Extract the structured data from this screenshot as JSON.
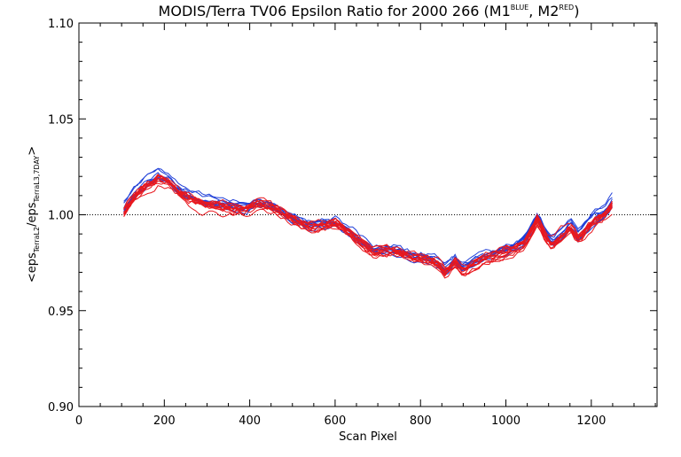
{
  "chart_data": {
    "type": "line",
    "title": {
      "main": "MODIS/Terra TV06 Epsilon Ratio for 2000 266 (M1",
      "m1_sup": "BLUE",
      "mid": ", M2",
      "m2_sup": "RED",
      "end": ")"
    },
    "xlabel": "Scan Pixel",
    "ylabel": {
      "a": "<eps",
      "a_sub": "TerraL2",
      "b": "/eps",
      "b_sub": "TerraL3,7DAY",
      "c": ">"
    },
    "xlim": [
      0,
      1354
    ],
    "ylim": [
      0.9,
      1.1
    ],
    "x_ticks": [
      {
        "value": 0,
        "label": "0"
      },
      {
        "value": 200,
        "label": "200"
      },
      {
        "value": 400,
        "label": "400"
      },
      {
        "value": 600,
        "label": "600"
      },
      {
        "value": 800,
        "label": "800"
      },
      {
        "value": 1000,
        "label": "1000"
      },
      {
        "value": 1200,
        "label": "1200"
      }
    ],
    "y_ticks": [
      {
        "value": 0.9,
        "label": "0.90"
      },
      {
        "value": 0.95,
        "label": "0.95"
      },
      {
        "value": 1.0,
        "label": "1.00"
      },
      {
        "value": 1.05,
        "label": "1.05"
      },
      {
        "value": 1.1,
        "label": "1.10"
      }
    ],
    "reference_line": {
      "y": 1.0,
      "style": "dotted"
    },
    "base_profile": {
      "x": [
        105,
        130,
        160,
        185,
        210,
        240,
        270,
        300,
        330,
        360,
        390,
        420,
        450,
        480,
        510,
        540,
        570,
        600,
        630,
        660,
        690,
        720,
        750,
        780,
        810,
        840,
        860,
        880,
        900,
        920,
        950,
        980,
        1010,
        1040,
        1060,
        1075,
        1090,
        1110,
        1130,
        1150,
        1170,
        1190,
        1210,
        1230,
        1250
      ],
      "y": [
        1.002,
        1.01,
        1.016,
        1.019,
        1.017,
        1.011,
        1.008,
        1.006,
        1.005,
        1.004,
        1.003,
        1.006,
        1.004,
        1.001,
        0.997,
        0.994,
        0.995,
        0.996,
        0.992,
        0.986,
        0.981,
        0.982,
        0.981,
        0.978,
        0.977,
        0.975,
        0.97,
        0.976,
        0.971,
        0.974,
        0.977,
        0.979,
        0.982,
        0.985,
        0.992,
        0.999,
        0.99,
        0.985,
        0.99,
        0.995,
        0.988,
        0.993,
        0.998,
        1.0,
        1.006
      ]
    },
    "series": [
      {
        "color": "#1f3fd8",
        "offset": 0.004,
        "wiggle": 0.002,
        "seed": 1
      },
      {
        "color": "#1f3fd8",
        "offset": 0.002,
        "wiggle": 0.0025,
        "seed": 2
      },
      {
        "color": "#1f3fd8",
        "offset": 0.001,
        "wiggle": 0.002,
        "seed": 3
      },
      {
        "color": "#1f3fd8",
        "offset": 0.003,
        "wiggle": 0.003,
        "seed": 4
      },
      {
        "color": "#1f3fd8",
        "offset": 0.0,
        "wiggle": 0.002,
        "seed": 5
      },
      {
        "color": "#1f3fd8",
        "offset": -0.001,
        "wiggle": 0.0025,
        "seed": 6
      },
      {
        "color": "#1f3fd8",
        "offset": 0.005,
        "wiggle": 0.002,
        "seed": 7
      },
      {
        "color": "#1f3fd8",
        "offset": 0.002,
        "wiggle": 0.003,
        "seed": 8
      },
      {
        "color": "#1f3fd8",
        "offset": -0.002,
        "wiggle": 0.002,
        "seed": 9
      },
      {
        "color": "#1f3fd8",
        "offset": 0.001,
        "wiggle": 0.0025,
        "seed": 10
      },
      {
        "color": "#e8181e",
        "offset": 0.0,
        "wiggle": 0.003,
        "seed": 11
      },
      {
        "color": "#e8181e",
        "offset": -0.002,
        "wiggle": 0.0025,
        "seed": 12
      },
      {
        "color": "#e8181e",
        "offset": 0.001,
        "wiggle": 0.0035,
        "seed": 13
      },
      {
        "color": "#e8181e",
        "offset": -0.001,
        "wiggle": 0.003,
        "seed": 14
      },
      {
        "color": "#e8181e",
        "offset": -0.003,
        "wiggle": 0.0025,
        "seed": 15
      },
      {
        "color": "#e8181e",
        "offset": 0.002,
        "wiggle": 0.003,
        "seed": 16
      },
      {
        "color": "#e8181e",
        "offset": -0.002,
        "wiggle": 0.0035,
        "seed": 17
      },
      {
        "color": "#e8181e",
        "offset": 0.0,
        "wiggle": 0.0025,
        "seed": 18
      },
      {
        "color": "#e8181e",
        "offset": -0.004,
        "wiggle": 0.003,
        "seed": 19
      },
      {
        "color": "#e8181e",
        "offset": 0.001,
        "wiggle": 0.003,
        "seed": 20
      },
      {
        "color": "#e8181e",
        "offset": -0.001,
        "wiggle": 0.0035,
        "seed": 21
      },
      {
        "color": "#e8181e",
        "offset": -0.003,
        "wiggle": 0.0025,
        "seed": 22
      }
    ],
    "grid": false,
    "legend": "none"
  }
}
